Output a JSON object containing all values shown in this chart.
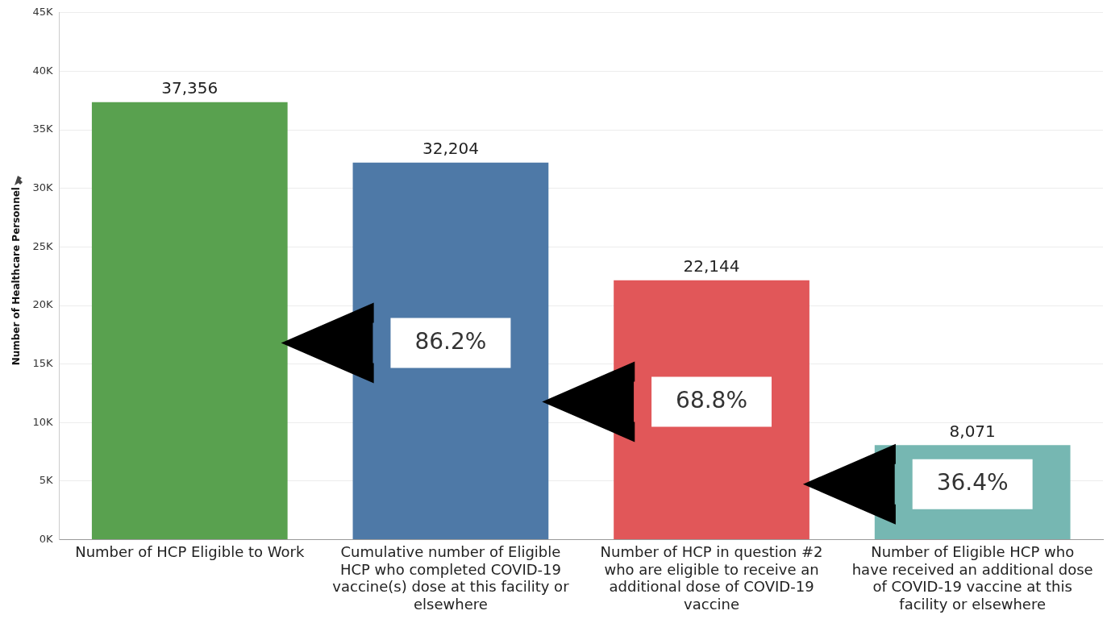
{
  "chart_data": {
    "type": "bar",
    "ylabel": "Number of Healthcare Personnel",
    "categories": [
      "Number of HCP Eligible to Work",
      "Cumulative number of Eligible HCP who completed COVID-19 vaccine(s) dose at this facility or elsewhere",
      "Number of HCP in question #2 who are eligible to receive an additional dose of COVID-19 vaccine",
      "Number of Eligible HCP who have received an additional dose of COVID-19 vaccine at this facility or elsewhere"
    ],
    "values": [
      37356,
      32204,
      22144,
      8071
    ],
    "colors": [
      "#59a14f",
      "#4e79a7",
      "#e15759",
      "#76b7b2"
    ],
    "ylim": [
      0,
      45000
    ],
    "yticks": [
      {
        "value": 0,
        "label": "0K"
      },
      {
        "value": 5000,
        "label": "5K"
      },
      {
        "value": 10000,
        "label": "10K"
      },
      {
        "value": 15000,
        "label": "15K"
      },
      {
        "value": 20000,
        "label": "20K"
      },
      {
        "value": 25000,
        "label": "25K"
      },
      {
        "value": 30000,
        "label": "30K"
      },
      {
        "value": 35000,
        "label": "35K"
      },
      {
        "value": 40000,
        "label": "40K"
      },
      {
        "value": 45000,
        "label": "45K"
      }
    ],
    "value_labels": [
      "37,356",
      "32,204",
      "22,144",
      "8,071"
    ],
    "grid": "y",
    "legend": false,
    "annotations": [
      "86.2%",
      "68.8%",
      "36.4%"
    ]
  }
}
